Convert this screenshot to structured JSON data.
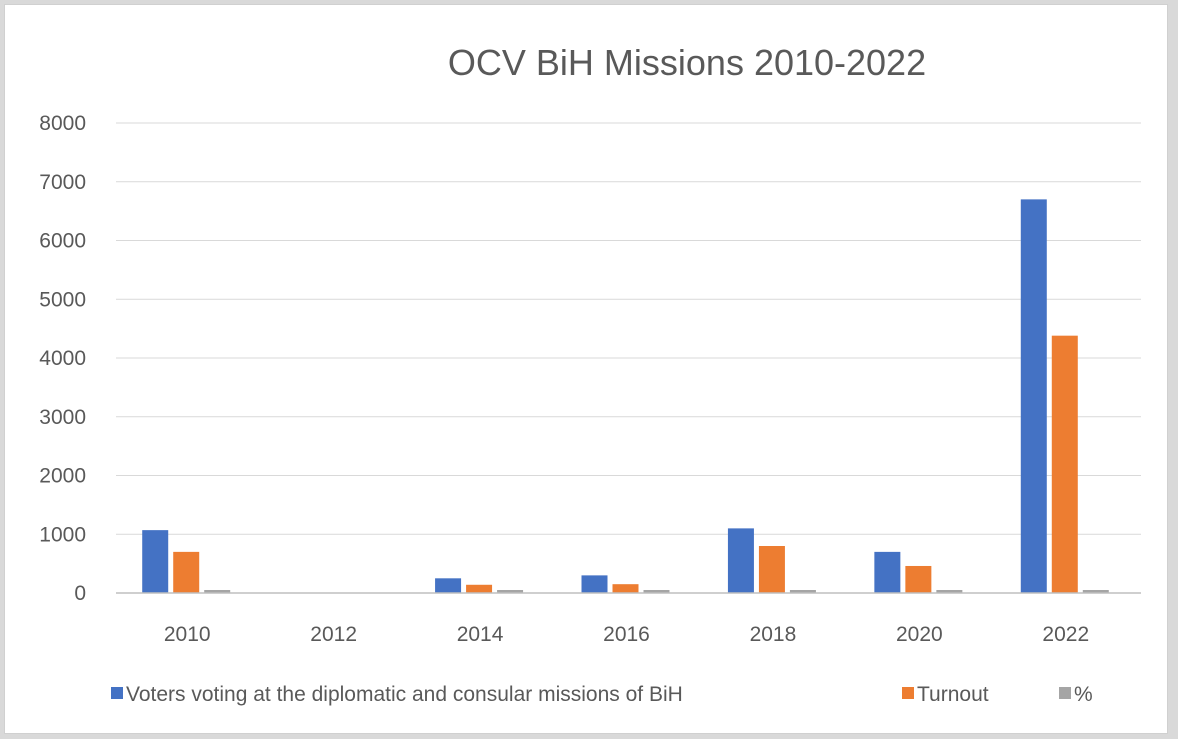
{
  "chart_data": {
    "type": "bar",
    "title": "OCV BiH Missions 2010-2022",
    "categories": [
      "2010",
      "2012",
      "2014",
      "2016",
      "2018",
      "2020",
      "2022"
    ],
    "series": [
      {
        "name": "Voters voting at the diplomatic and consular missions of BiH",
        "color": "#4472c4",
        "values": [
          1070,
          0,
          250,
          300,
          1100,
          700,
          6700
        ]
      },
      {
        "name": "Turnout",
        "color": "#ed7d31",
        "values": [
          700,
          0,
          140,
          150,
          800,
          460,
          4380
        ]
      },
      {
        "name": "%",
        "color": "#a5a5a5",
        "values": [
          35,
          0,
          30,
          30,
          35,
          35,
          35
        ]
      }
    ],
    "ylim": [
      0,
      8000
    ],
    "yticks": [
      "0",
      "1000",
      "2000",
      "3000",
      "4000",
      "5000",
      "6000",
      "7000",
      "8000"
    ],
    "grid": true,
    "legend_position": "bottom"
  }
}
